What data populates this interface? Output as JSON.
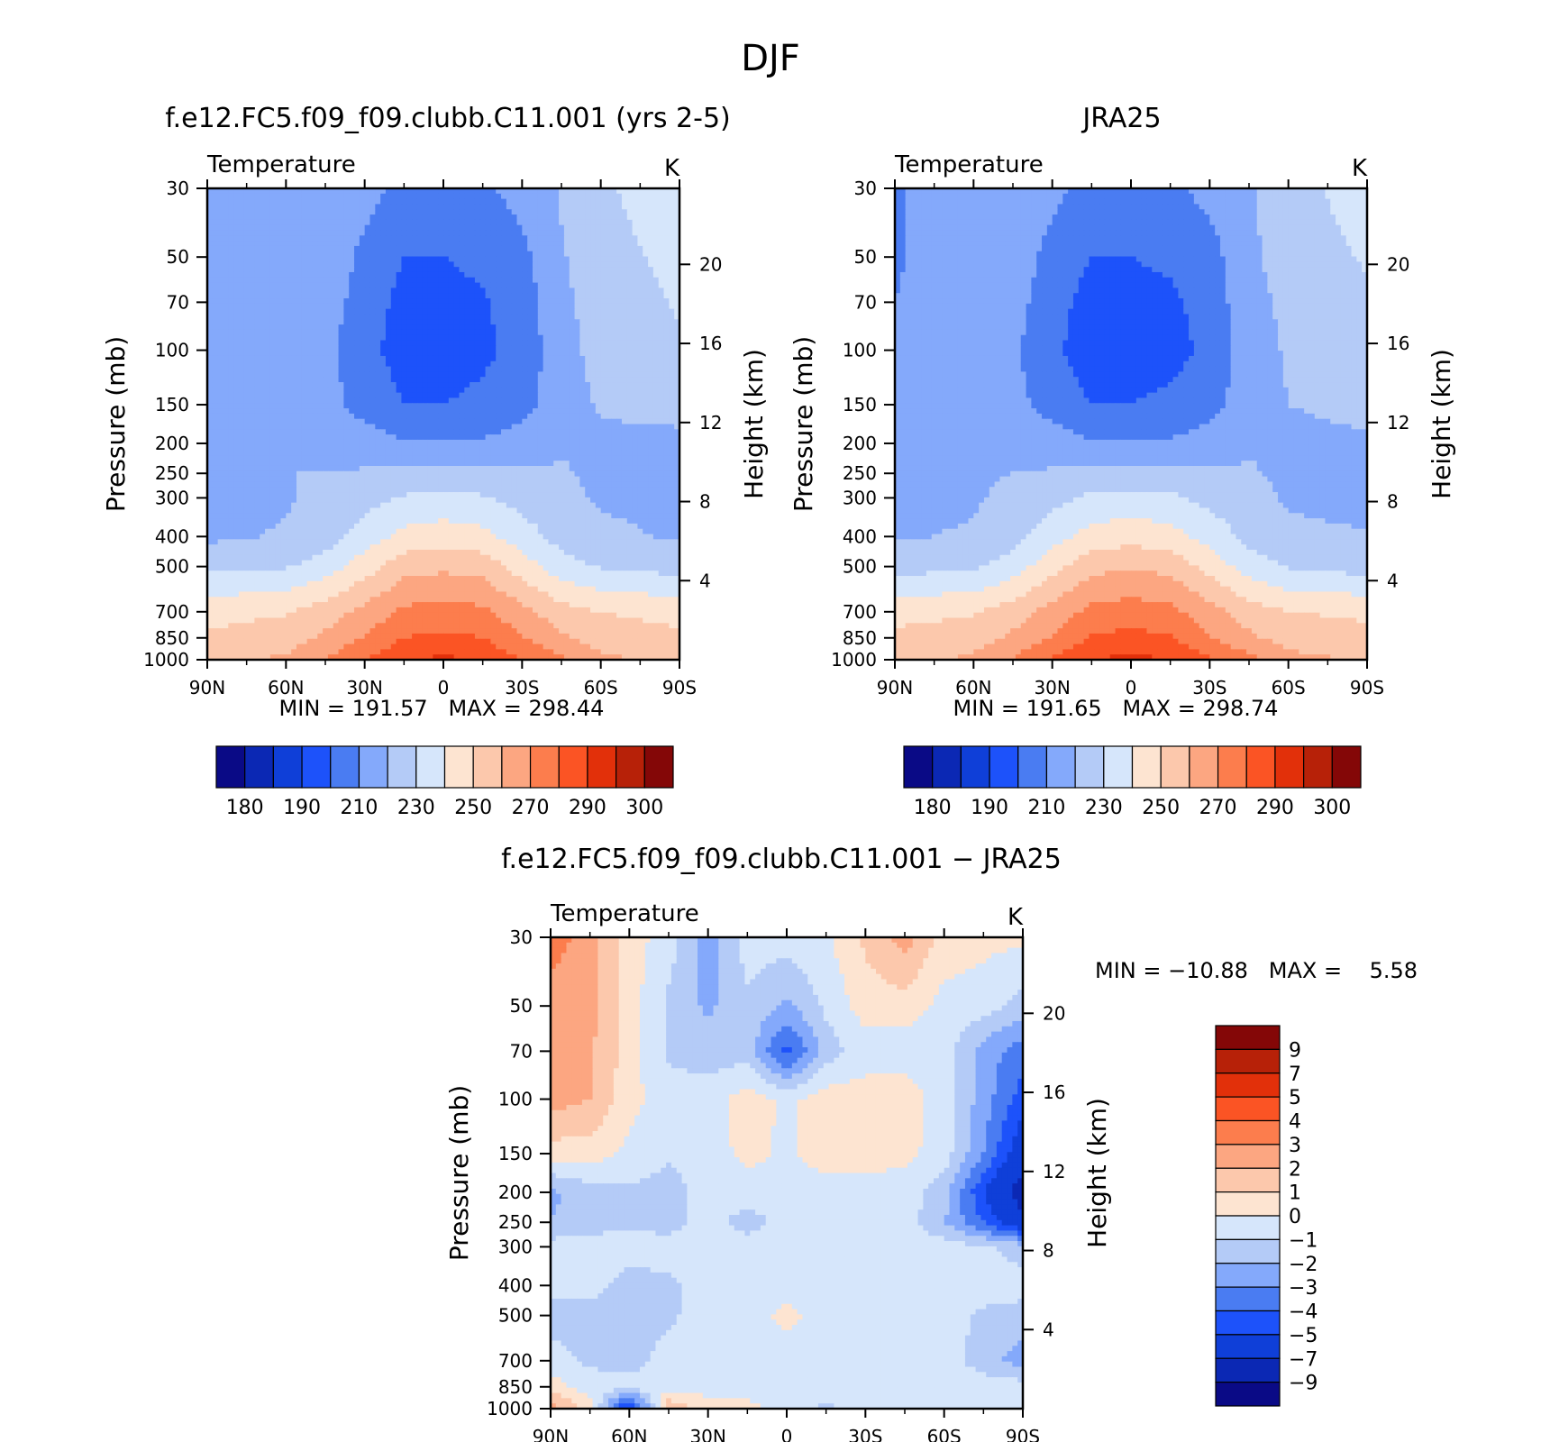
{
  "figure": {
    "title": "DJF"
  },
  "colors": {
    "abs_palette": [
      "#0a0a86",
      "#0b28b4",
      "#0f3fd8",
      "#1d52fa",
      "#4a7cf2",
      "#84a9fb",
      "#b4cbf7",
      "#d6e6fb",
      "#fde4d1",
      "#fcc8ac",
      "#fca681",
      "#fc7d4d",
      "#fb5424",
      "#e2300a",
      "#b72108",
      "#840707"
    ],
    "diff_palette": [
      "#0a0a86",
      "#0b28b4",
      "#0f3fd8",
      "#1d52fa",
      "#4a7cf2",
      "#84a9fb",
      "#b4cbf7",
      "#d6e6fb",
      "#fde4d1",
      "#fcc8ac",
      "#fca681",
      "#fc7d4d",
      "#fb5424",
      "#e2300a",
      "#b72108",
      "#840707"
    ]
  },
  "chart_data": [
    {
      "type": "heatmap",
      "panel": "model",
      "title": "f.e12.FC5.f09_f09.clubb.C11.001 (yrs 2-5)",
      "field_label": "Temperature",
      "units": "K",
      "ylabel": "Pressure (mb)",
      "ylabel_right": "Height (km)",
      "x_ticks": [
        "90N",
        "60N",
        "30N",
        "0",
        "30S",
        "60S",
        "90S"
      ],
      "y_ticks": [
        "30",
        "50",
        "70",
        "100",
        "150",
        "200",
        "250",
        "300",
        "400",
        "500",
        "700",
        "850",
        "1000"
      ],
      "y_ticks_right": [
        "20",
        "16",
        "12",
        "8",
        "4"
      ],
      "y_reversed": true,
      "y_log": true,
      "stats": "MIN = 191.57   MAX = 298.44",
      "colorbar_labels": [
        "180",
        "190",
        "210",
        "230",
        "250",
        "270",
        "290",
        "300"
      ],
      "lat": [
        90,
        60,
        45,
        30,
        15,
        0,
        -15,
        -30,
        -45,
        -60,
        -90
      ],
      "p": [
        30,
        50,
        70,
        100,
        150,
        200,
        250,
        300,
        400,
        500,
        700,
        850,
        1000
      ],
      "values": [
        [
          211,
          217,
          219,
          214,
          206,
          206,
          208,
          214,
          221,
          228,
          237
        ],
        [
          211,
          217,
          218,
          207,
          200,
          200,
          202,
          207,
          219,
          226,
          233
        ],
        [
          211,
          217,
          215,
          205,
          197,
          197,
          199,
          205,
          218,
          224,
          231
        ],
        [
          211,
          217,
          213,
          203,
          196,
          196,
          198,
          203,
          217,
          223,
          229
        ],
        [
          213,
          217,
          214,
          206,
          200,
          200,
          202,
          206,
          216,
          221,
          224
        ],
        [
          212,
          219,
          218,
          215,
          211,
          211,
          211,
          215,
          219,
          218,
          217
        ],
        [
          214,
          220,
          220,
          221,
          223,
          223,
          223,
          221,
          221,
          218,
          217
        ],
        [
          216,
          219,
          222,
          226,
          231,
          233,
          231,
          226,
          222,
          219,
          217
        ],
        [
          218,
          221,
          225,
          235,
          243,
          245,
          243,
          235,
          226,
          222,
          219
        ],
        [
          227,
          229,
          235,
          245,
          256,
          258,
          256,
          245,
          234,
          229,
          226
        ],
        [
          247,
          249,
          255,
          263,
          272,
          274,
          272,
          263,
          254,
          250,
          247
        ],
        [
          251,
          255,
          262,
          271,
          280,
          282,
          280,
          271,
          262,
          255,
          252
        ],
        [
          255,
          262,
          270,
          280,
          288,
          292,
          288,
          280,
          272,
          262,
          258
        ]
      ]
    },
    {
      "type": "heatmap",
      "panel": "observation",
      "title": "JRA25",
      "field_label": "Temperature",
      "units": "K",
      "ylabel": "Pressure (mb)",
      "ylabel_right": "Height (km)",
      "x_ticks": [
        "90N",
        "60N",
        "30N",
        "0",
        "30S",
        "60S",
        "90S"
      ],
      "y_ticks": [
        "30",
        "50",
        "70",
        "100",
        "150",
        "200",
        "250",
        "300",
        "400",
        "500",
        "700",
        "850",
        "1000"
      ],
      "y_ticks_right": [
        "20",
        "16",
        "12",
        "8",
        "4"
      ],
      "y_reversed": true,
      "y_log": true,
      "stats": "MIN = 191.65   MAX = 298.74",
      "colorbar_labels": [
        "180",
        "190",
        "210",
        "230",
        "250",
        "270",
        "290",
        "300"
      ],
      "lat": [
        90,
        60,
        45,
        30,
        15,
        0,
        -15,
        -30,
        -45,
        -60,
        -90
      ],
      "p": [
        30,
        50,
        70,
        100,
        150,
        200,
        250,
        300,
        400,
        500,
        700,
        850,
        1000
      ],
      "values": [
        [
          209,
          217,
          218,
          213,
          206,
          206,
          208,
          213,
          219,
          226,
          235
        ],
        [
          209,
          216,
          217,
          206,
          200,
          200,
          202,
          206,
          218,
          224,
          231
        ],
        [
          210,
          216,
          214,
          204,
          196,
          196,
          198,
          204,
          217,
          222,
          229
        ],
        [
          210,
          216,
          212,
          202,
          195,
          195,
          197,
          202,
          216,
          221,
          227
        ],
        [
          211,
          216,
          213,
          206,
          200,
          200,
          202,
          206,
          216,
          220,
          222
        ],
        [
          213,
          218,
          218,
          215,
          211,
          211,
          211,
          215,
          219,
          218,
          219
        ],
        [
          215,
          219,
          220,
          221,
          223,
          223,
          223,
          221,
          221,
          218,
          218
        ],
        [
          217,
          219,
          222,
          227,
          232,
          233,
          232,
          227,
          223,
          219,
          216
        ],
        [
          219,
          221,
          226,
          236,
          244,
          246,
          244,
          236,
          227,
          222,
          221
        ],
        [
          226,
          228,
          235,
          246,
          257,
          259,
          257,
          246,
          235,
          229,
          226
        ],
        [
          247,
          249,
          255,
          264,
          273,
          275,
          273,
          264,
          255,
          250,
          248
        ],
        [
          252,
          255,
          262,
          271,
          281,
          283,
          281,
          271,
          262,
          256,
          253
        ],
        [
          256,
          262,
          271,
          281,
          289,
          293,
          289,
          281,
          273,
          263,
          259
        ]
      ]
    },
    {
      "type": "heatmap",
      "panel": "difference",
      "title": "f.e12.FC5.f09_f09.clubb.C11.001 − JRA25",
      "field_label": "Temperature",
      "units": "K",
      "ylabel": "Pressure (mb)",
      "ylabel_right": "Height (km)",
      "x_ticks": [
        "90N",
        "60N",
        "30N",
        "0",
        "30S",
        "60S",
        "90S"
      ],
      "y_ticks": [
        "30",
        "50",
        "70",
        "100",
        "150",
        "200",
        "250",
        "300",
        "400",
        "500",
        "700",
        "850",
        "1000"
      ],
      "y_ticks_right": [
        "20",
        "16",
        "12",
        "8",
        "4"
      ],
      "y_reversed": true,
      "y_log": true,
      "stats": "MIN = −10.88   MAX =    5.58",
      "colorbar_labels": [
        "9",
        "7",
        "5",
        "4",
        "3",
        "2",
        "1",
        "0",
        "−1",
        "−2",
        "−3",
        "−4",
        "−5",
        "−7",
        "−9"
      ],
      "lat": [
        90,
        75,
        60,
        45,
        30,
        15,
        0,
        -15,
        -30,
        -45,
        -60,
        -75,
        -90
      ],
      "p": [
        30,
        50,
        70,
        100,
        150,
        200,
        250,
        300,
        400,
        500,
        700,
        850,
        1000
      ],
      "values": [
        [
          3.5,
          2.5,
          0.5,
          -0.5,
          -2.5,
          -0.5,
          -0.5,
          -0.2,
          1.2,
          2.5,
          0.5,
          0.3,
          0.2
        ],
        [
          2.5,
          2.3,
          0.5,
          -1.2,
          -2.2,
          -1.2,
          -2.2,
          -0.8,
          0.5,
          0.5,
          -0.3,
          -0.5,
          -1.5
        ],
        [
          2.2,
          2.2,
          0.5,
          -1.2,
          -1.5,
          -1.5,
          -4.5,
          -1.5,
          -0.5,
          -0.5,
          -0.5,
          -2.5,
          -3.5
        ],
        [
          2.5,
          2.0,
          0.3,
          -0.5,
          -0.5,
          0.5,
          -0.2,
          0.5,
          0.5,
          0.5,
          -0.5,
          -2.5,
          -4.5
        ],
        [
          0.5,
          0.5,
          -0.2,
          -0.8,
          -0.5,
          0.3,
          -0.2,
          0.5,
          0.5,
          0.3,
          -0.5,
          -3.0,
          -6.0
        ],
        [
          -2.2,
          -1.5,
          -1.2,
          -1.5,
          -0.5,
          -0.5,
          -0.5,
          -0.5,
          -0.5,
          -0.5,
          -1.5,
          -5.0,
          -8.0
        ],
        [
          -2.0,
          -1.5,
          -1.2,
          -1.5,
          -0.5,
          -1.5,
          -0.5,
          -0.5,
          -0.5,
          -0.5,
          -2.0,
          -4.0,
          -6.5
        ],
        [
          -0.5,
          -0.5,
          -0.5,
          -0.5,
          -0.5,
          -0.5,
          -0.5,
          -0.5,
          -0.5,
          -0.5,
          -0.5,
          -0.8,
          -1.5
        ],
        [
          -0.5,
          -0.5,
          -1.5,
          -1.2,
          -0.5,
          -0.5,
          -0.5,
          -0.5,
          -0.5,
          -0.5,
          -0.5,
          -0.5,
          -0.5
        ],
        [
          -1.5,
          -1.5,
          -1.5,
          -1.2,
          -0.5,
          -0.5,
          0.3,
          -0.5,
          -0.5,
          -0.5,
          -0.5,
          -1.2,
          -1.5
        ],
        [
          -0.5,
          -1.2,
          -1.5,
          -0.5,
          -0.5,
          -0.5,
          -0.5,
          -0.5,
          -0.5,
          -0.5,
          -0.5,
          -1.5,
          -2.5
        ],
        [
          0.5,
          -0.5,
          -0.5,
          -0.5,
          -0.5,
          -0.5,
          -0.5,
          -0.5,
          -0.5,
          -0.5,
          -0.5,
          -0.5,
          -0.5
        ],
        [
          2.5,
          0.5,
          -6.0,
          2.0,
          0.5,
          0.3,
          -0.5,
          -1.2,
          -0.5,
          -0.5,
          -0.5,
          -0.5,
          -0.5
        ]
      ]
    }
  ]
}
